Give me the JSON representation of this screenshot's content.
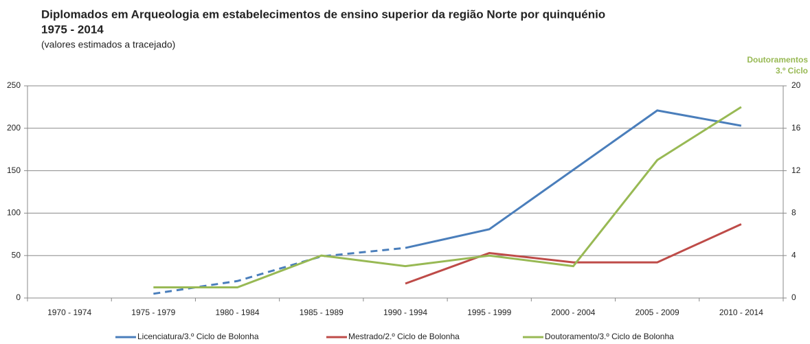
{
  "chart_data": {
    "type": "line",
    "title": "Diplomados em Arqueologia em estabelecimentos de ensino superior da região Norte por quinquénio",
    "subtitle": "1975 - 2014",
    "note": "(valores estimados a tracejado)",
    "y2label": [
      "Doutoramentos",
      "3.º Ciclo"
    ],
    "categories": [
      "1970 - 1974",
      "1975 - 1979",
      "1980 - 1984",
      "1985 - 1989",
      "1990 - 1994",
      "1995 - 1999",
      "2000 - 2004",
      "2005 - 2009",
      "2010 - 2014"
    ],
    "series": [
      {
        "name": "Licenciatura/3.º Ciclo de Bolonha",
        "color": "#4a7ebb",
        "values": [
          null,
          5,
          20,
          49,
          59,
          81,
          151,
          221,
          203
        ],
        "dashed": [
          false,
          false,
          true,
          true,
          true,
          false,
          false,
          false,
          false
        ]
      },
      {
        "name": "Mestrado/2.º Ciclo de Bolonha",
        "color": "#be4b48",
        "values": [
          null,
          null,
          null,
          null,
          17,
          53,
          42,
          42,
          87
        ]
      },
      {
        "name": "Doutoramento/3.º Ciclo de Bolonha",
        "color": "#98b954",
        "axis": "y2",
        "values": [
          null,
          1,
          1,
          4,
          3,
          4,
          3,
          13,
          18
        ]
      }
    ],
    "ylim": [
      0,
      250
    ],
    "yticks": [
      0,
      50,
      100,
      150,
      200,
      250
    ],
    "y2lim": [
      0,
      20
    ],
    "y2ticks": [
      0,
      4,
      8,
      12,
      16,
      20
    ],
    "grid": true,
    "legend": "bottom"
  }
}
